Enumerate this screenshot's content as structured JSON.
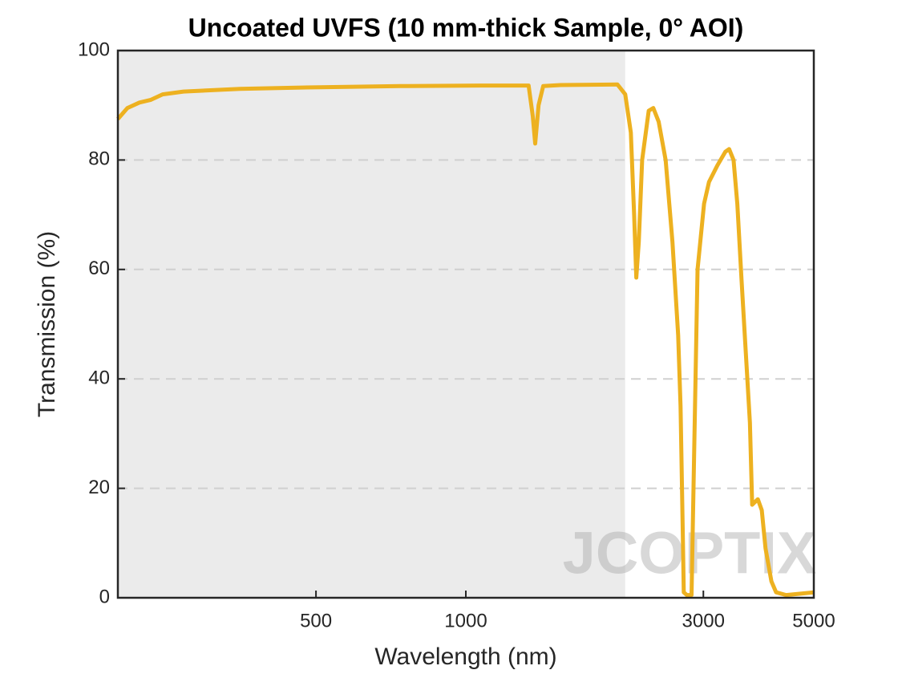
{
  "chart_data": {
    "type": "line",
    "title": "Uncoated UVFS (10 mm-thick Sample, 0° AOI)",
    "x_label": "Wavelength (nm)",
    "y_label": "Transmission (%)",
    "watermark": "JCOPTIX",
    "x_scale": "log",
    "xlim": [
      200,
      5000
    ],
    "ylim": [
      0,
      100
    ],
    "xticks": [
      500,
      1000,
      3000,
      5000
    ],
    "yticks": [
      0,
      20,
      40,
      60,
      80,
      100
    ],
    "grid": true,
    "shaded_xlim": [
      200,
      2090
    ],
    "shade_color": "#ebebeb",
    "series": [
      {
        "name": "Transmission",
        "color": "#edb120",
        "x": [
          200,
          209,
          221,
          233,
          246,
          271,
          352,
          509,
          740,
          1071,
          1337,
          1363,
          1378,
          1400,
          1430,
          1550,
          2016,
          2090,
          2145,
          2178,
          2200,
          2225,
          2260,
          2330,
          2380,
          2440,
          2520,
          2600,
          2670,
          2700,
          2730,
          2740,
          2780,
          2840,
          2880,
          2920,
          3010,
          3080,
          3200,
          3320,
          3380,
          3450,
          3510,
          3580,
          3650,
          3720,
          3760,
          3860,
          3930,
          4000,
          4110,
          4200,
          4400,
          5000
        ],
        "values": [
          87.5,
          89.5,
          90.5,
          91,
          92,
          92.5,
          93,
          93.3,
          93.5,
          93.6,
          93.6,
          88,
          83,
          90,
          93.5,
          93.7,
          93.8,
          92,
          85,
          70,
          58.5,
          65,
          80,
          89,
          89.5,
          87,
          80,
          65,
          48,
          35,
          10,
          1,
          0.5,
          0.5,
          30,
          60,
          72,
          76,
          79,
          81.5,
          82,
          80,
          72,
          58,
          45,
          32,
          17,
          18,
          16,
          9,
          3,
          1,
          0.5,
          1
        ]
      }
    ]
  }
}
